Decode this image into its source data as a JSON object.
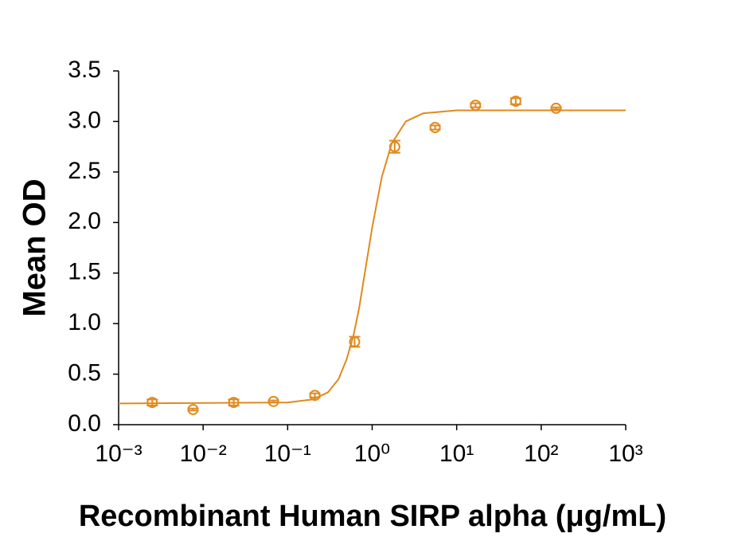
{
  "chart_data": {
    "type": "scatter",
    "x_label": "Recombinant Human SIRP alpha (μg/mL)",
    "y_label": "Mean OD",
    "x_scale": "log",
    "xlim": [
      0.001,
      1000
    ],
    "xticks": [
      {
        "value": 0.001,
        "label": "10⁻³"
      },
      {
        "value": 0.01,
        "label": "10⁻²"
      },
      {
        "value": 0.1,
        "label": "10⁻¹"
      },
      {
        "value": 1,
        "label": "10⁰"
      },
      {
        "value": 10,
        "label": "10¹"
      },
      {
        "value": 100,
        "label": "10²"
      },
      {
        "value": 1000,
        "label": "10³"
      }
    ],
    "ylim": [
      0,
      3.5
    ],
    "yticks": [
      {
        "value": 0,
        "label": "0.0"
      },
      {
        "value": 0.5,
        "label": "0.5"
      },
      {
        "value": 1,
        "label": "1.0"
      },
      {
        "value": 1.5,
        "label": "1.5"
      },
      {
        "value": 2,
        "label": "2.0"
      },
      {
        "value": 2.5,
        "label": "2.5"
      },
      {
        "value": 3,
        "label": "3.0"
      },
      {
        "value": 3.5,
        "label": "3.5"
      }
    ],
    "color": "#e08a1e",
    "points": {
      "x": [
        0.0025,
        0.0076,
        0.023,
        0.068,
        0.21,
        0.62,
        1.85,
        5.56,
        16.7,
        50,
        150
      ],
      "values": [
        0.22,
        0.15,
        0.22,
        0.23,
        0.29,
        0.82,
        2.75,
        2.94,
        3.16,
        3.2,
        3.13
      ],
      "errors": [
        0.03,
        0.01,
        0.03,
        0.01,
        0.02,
        0.05,
        0.06,
        0.02,
        0.02,
        0.03,
        0.01
      ]
    },
    "fit": {
      "x": [
        0.001,
        0.1,
        0.2,
        0.3,
        0.4,
        0.5,
        0.6,
        0.7,
        0.8,
        1,
        1.3,
        1.7,
        2.5,
        4,
        10,
        1000
      ],
      "values": [
        0.21,
        0.22,
        0.25,
        0.32,
        0.45,
        0.65,
        0.88,
        1.15,
        1.45,
        1.95,
        2.45,
        2.78,
        3.0,
        3.08,
        3.11,
        3.11
      ]
    }
  }
}
